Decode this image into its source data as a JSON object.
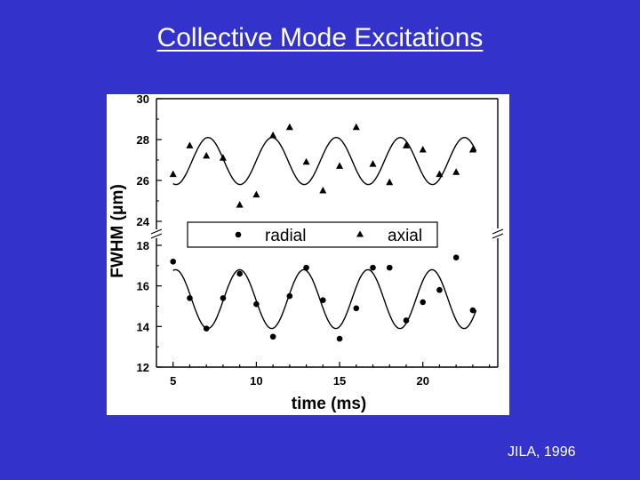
{
  "slide": {
    "title": "Collective Mode Excitations",
    "credit": "JILA, 1996",
    "background_color": "#3333cc",
    "text_color": "#ffffff"
  },
  "chart_data": {
    "type": "scatter",
    "xlabel": "time (ms)",
    "ylabel": "FWHM (μm)",
    "xlim": [
      4,
      24.5
    ],
    "x_ticks": [
      5,
      10,
      15,
      20
    ],
    "y_axis_broken": true,
    "y_upper_range": [
      24,
      30
    ],
    "y_upper_ticks": [
      24,
      26,
      28,
      30
    ],
    "y_lower_range": [
      12,
      18
    ],
    "y_lower_ticks": [
      12,
      14,
      16,
      18
    ],
    "legend_position": "center",
    "grid": false,
    "series": [
      {
        "name": "radial",
        "marker": "circle",
        "points": [
          {
            "x": 5.0,
            "y": 17.2
          },
          {
            "x": 6.0,
            "y": 15.4
          },
          {
            "x": 7.0,
            "y": 13.9
          },
          {
            "x": 8.0,
            "y": 15.4
          },
          {
            "x": 9.0,
            "y": 16.6
          },
          {
            "x": 10.0,
            "y": 15.1
          },
          {
            "x": 11.0,
            "y": 13.5
          },
          {
            "x": 12.0,
            "y": 15.5
          },
          {
            "x": 13.0,
            "y": 16.9
          },
          {
            "x": 14.0,
            "y": 15.3
          },
          {
            "x": 15.0,
            "y": 13.4
          },
          {
            "x": 16.0,
            "y": 14.9
          },
          {
            "x": 17.0,
            "y": 16.9
          },
          {
            "x": 18.0,
            "y": 16.9
          },
          {
            "x": 19.0,
            "y": 14.3
          },
          {
            "x": 20.0,
            "y": 15.2
          },
          {
            "x": 21.0,
            "y": 15.8
          },
          {
            "x": 22.0,
            "y": 17.4
          },
          {
            "x": 23.0,
            "y": 14.8
          }
        ],
        "fit": {
          "mean": 15.35,
          "amplitude": 1.45,
          "period": 3.85,
          "peak_x": 9.0
        }
      },
      {
        "name": "axial",
        "marker": "triangle",
        "points": [
          {
            "x": 5.0,
            "y": 26.3
          },
          {
            "x": 6.0,
            "y": 27.7
          },
          {
            "x": 7.0,
            "y": 27.2
          },
          {
            "x": 8.0,
            "y": 27.1
          },
          {
            "x": 9.0,
            "y": 24.8
          },
          {
            "x": 10.0,
            "y": 25.3
          },
          {
            "x": 11.0,
            "y": 28.2
          },
          {
            "x": 12.0,
            "y": 28.6
          },
          {
            "x": 13.0,
            "y": 26.9
          },
          {
            "x": 14.0,
            "y": 25.5
          },
          {
            "x": 15.0,
            "y": 26.7
          },
          {
            "x": 16.0,
            "y": 28.6
          },
          {
            "x": 17.0,
            "y": 26.8
          },
          {
            "x": 18.0,
            "y": 25.9
          },
          {
            "x": 19.0,
            "y": 27.7
          },
          {
            "x": 20.0,
            "y": 27.5
          },
          {
            "x": 21.0,
            "y": 26.3
          },
          {
            "x": 22.0,
            "y": 26.4
          },
          {
            "x": 23.0,
            "y": 27.5
          }
        ],
        "fit": {
          "mean": 26.95,
          "amplitude": 1.15,
          "period": 3.85,
          "peak_x": 7.1
        }
      }
    ]
  }
}
